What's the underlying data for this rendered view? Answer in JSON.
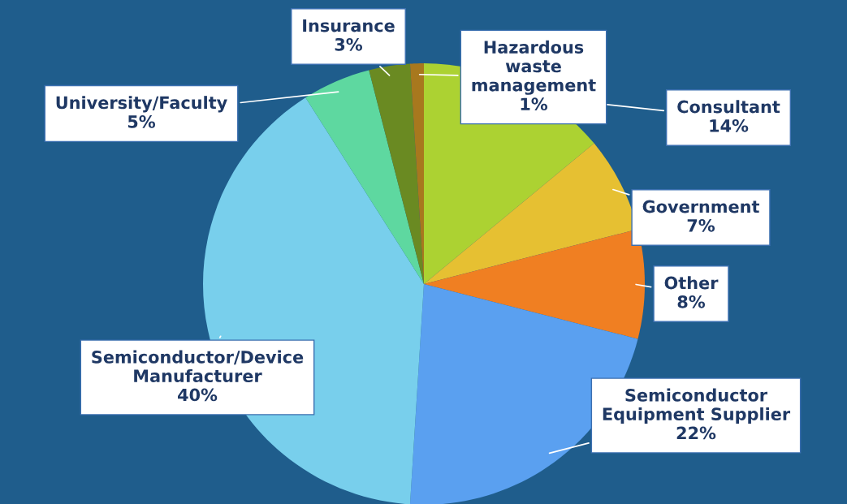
{
  "chart_data": {
    "type": "pie",
    "categories": [
      "Consultant",
      "Government",
      "Other",
      "Semiconductor Equipment Supplier",
      "Semiconductor/Device Manufacturer",
      "University/Faculty",
      "Insurance",
      "Hazardous waste management"
    ],
    "values": [
      14,
      7,
      8,
      22,
      40,
      5,
      3,
      1
    ],
    "colors": [
      "#acd232",
      "#e6c032",
      "#f07f22",
      "#5aa0f0",
      "#78cfec",
      "#5ed8a0",
      "#6a8a22",
      "#a8781e"
    ],
    "value_labels": [
      "14%",
      "7%",
      "8%",
      "22%",
      "40%",
      "5%",
      "3%",
      "1%"
    ]
  }
}
